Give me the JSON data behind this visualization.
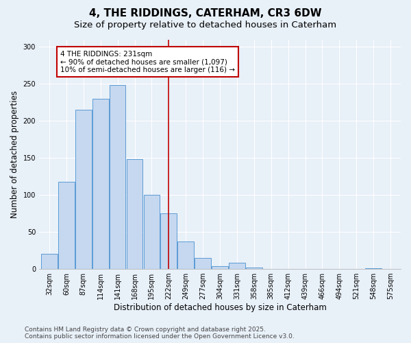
{
  "title": "4, THE RIDDINGS, CATERHAM, CR3 6DW",
  "subtitle": "Size of property relative to detached houses in Caterham",
  "xlabel": "Distribution of detached houses by size in Caterham",
  "ylabel": "Number of detached properties",
  "footer_line1": "Contains HM Land Registry data © Crown copyright and database right 2025.",
  "footer_line2": "Contains public sector information licensed under the Open Government Licence v3.0.",
  "categories": [
    "32sqm",
    "60sqm",
    "87sqm",
    "114sqm",
    "141sqm",
    "168sqm",
    "195sqm",
    "222sqm",
    "249sqm",
    "277sqm",
    "304sqm",
    "331sqm",
    "358sqm",
    "385sqm",
    "412sqm",
    "439sqm",
    "466sqm",
    "494sqm",
    "521sqm",
    "548sqm",
    "575sqm"
  ],
  "values": [
    20,
    118,
    215,
    230,
    248,
    148,
    100,
    75,
    37,
    15,
    4,
    8,
    2,
    0,
    0,
    0,
    0,
    0,
    0,
    1,
    0
  ],
  "bar_color": "#c5d8f0",
  "bar_edge_color": "#5b9bd5",
  "vline_x_index": 7,
  "vline_color": "#c00000",
  "annotation_text": "4 THE RIDDINGS: 231sqm\n← 90% of detached houses are smaller (1,097)\n10% of semi-detached houses are larger (116) →",
  "annotation_box_color": "#c00000",
  "ylim": [
    0,
    310
  ],
  "yticks": [
    0,
    50,
    100,
    150,
    200,
    250,
    300
  ],
  "background_color": "#e8f0f8",
  "grid_color": "#ffffff",
  "title_fontsize": 11,
  "subtitle_fontsize": 9.5,
  "axis_label_fontsize": 8.5,
  "tick_fontsize": 7,
  "footer_fontsize": 6.5
}
